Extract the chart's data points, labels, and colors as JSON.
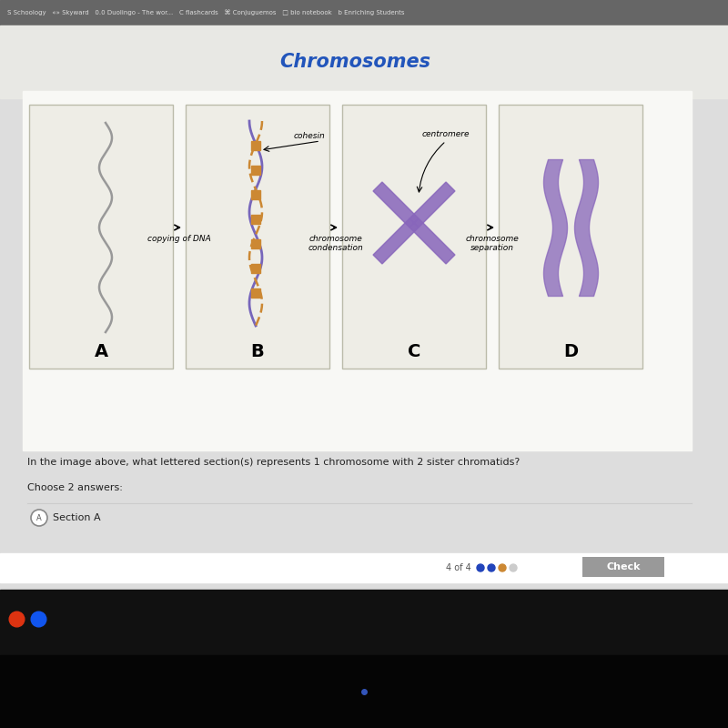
{
  "title": "Chromosomes",
  "title_color": "#2255bb",
  "title_fontsize": 15,
  "bg_color_top": "#aaaaaa",
  "bg_color_main": "#dddddd",
  "panel_bg": "#eeede6",
  "white_area_bg": "#f8f8f5",
  "question_text": "In the image above, what lettered section(s) represents 1 chromosome with 2 sister chromatids?",
  "choose_text": "Choose 2 answers:",
  "answer_text": "Section A",
  "section_labels": [
    "A",
    "B",
    "C",
    "D"
  ],
  "label_fontsize": 14,
  "arrow_label_A": "copying of DNA",
  "arrow_label_B": "chromosome\ncondensation",
  "arrow_label_C": "chromosome\nseparation",
  "cohesin_label": "cohesin",
  "centromere_label": "centromere",
  "border_color": "#bbbbaa",
  "strand_color1": "#7766bb",
  "strand_color2": "#cc8833",
  "x_color": "#8866bb",
  "bar_color": "#8866bb",
  "taskbar_color": "#111111",
  "browser_bar_color": "#555555"
}
